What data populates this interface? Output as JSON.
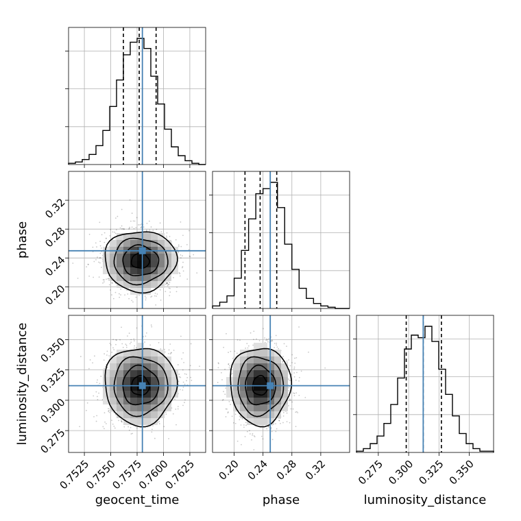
{
  "chart_data": {
    "type": "corner",
    "colors": {
      "truth": "#4682b4",
      "hist": "#000000",
      "quantile": "#000000",
      "grid": "#b0b0b0",
      "density": "#000000"
    },
    "parameters": [
      {
        "name": "geocent_time",
        "label": "geocent_time",
        "range": [
          0.751,
          0.764
        ],
        "ticks": [
          0.7525,
          0.755,
          0.7575,
          0.76,
          0.7625
        ],
        "tick_labels": [
          "0.7525",
          "0.7550",
          "0.7575",
          "0.7600",
          "0.7625"
        ],
        "truth": 0.758,
        "quantiles": [
          0.7562,
          0.7577,
          0.7593
        ],
        "hist_counts": [
          0.01,
          0.02,
          0.04,
          0.08,
          0.15,
          0.27,
          0.46,
          0.67,
          0.87,
          0.97,
          1.0,
          0.92,
          0.7,
          0.48,
          0.28,
          0.14,
          0.07,
          0.03,
          0.01,
          0.0
        ],
        "hist_y_ticks": [
          0.3,
          0.6,
          0.9
        ]
      },
      {
        "name": "phase",
        "label": "phase",
        "range": [
          0.17,
          0.36
        ],
        "ticks": [
          0.2,
          0.24,
          0.28,
          0.32
        ],
        "tick_labels": [
          "0.20",
          "0.24",
          "0.28",
          "0.32"
        ],
        "truth": 0.25,
        "quantiles": [
          0.215,
          0.236,
          0.259
        ],
        "hist_counts": [
          0.02,
          0.05,
          0.1,
          0.24,
          0.46,
          0.71,
          0.91,
          0.95,
          1.0,
          0.8,
          0.51,
          0.31,
          0.16,
          0.08,
          0.04,
          0.02,
          0.01,
          0.0,
          0.0
        ],
        "hist_y_ticks": [
          0.3,
          0.6,
          0.9
        ]
      },
      {
        "name": "luminosity_distance",
        "label": "luminosity_distance",
        "range": [
          0.257,
          0.37
        ],
        "ticks": [
          0.275,
          0.3,
          0.325,
          0.35
        ],
        "tick_labels": [
          "0.275",
          "0.300",
          "0.325",
          "0.350"
        ],
        "truth": 0.312,
        "quantiles": [
          0.298,
          0.312,
          0.327
        ],
        "hist_counts": [
          0.01,
          0.03,
          0.07,
          0.13,
          0.23,
          0.38,
          0.59,
          0.82,
          0.93,
          0.91,
          1.0,
          0.88,
          0.66,
          0.46,
          0.29,
          0.15,
          0.07,
          0.03,
          0.01,
          0.01
        ],
        "hist_y_ticks": [
          0.3,
          0.6,
          0.9
        ]
      }
    ],
    "panels_2d": [
      {
        "x": "geocent_time",
        "y": "phase",
        "center": [
          0.7578,
          0.236
        ],
        "sigma": [
          0.0017,
          0.021
        ]
      },
      {
        "x": "geocent_time",
        "y": "luminosity_distance",
        "center": [
          0.7578,
          0.312
        ],
        "sigma": [
          0.0017,
          0.016
        ]
      },
      {
        "x": "phase",
        "y": "luminosity_distance",
        "center": [
          0.236,
          0.312
        ],
        "sigma": [
          0.021,
          0.016
        ]
      }
    ],
    "contour_levels_sigma": [
      0.5,
      1.0,
      1.5,
      2.0
    ],
    "grid": true
  }
}
